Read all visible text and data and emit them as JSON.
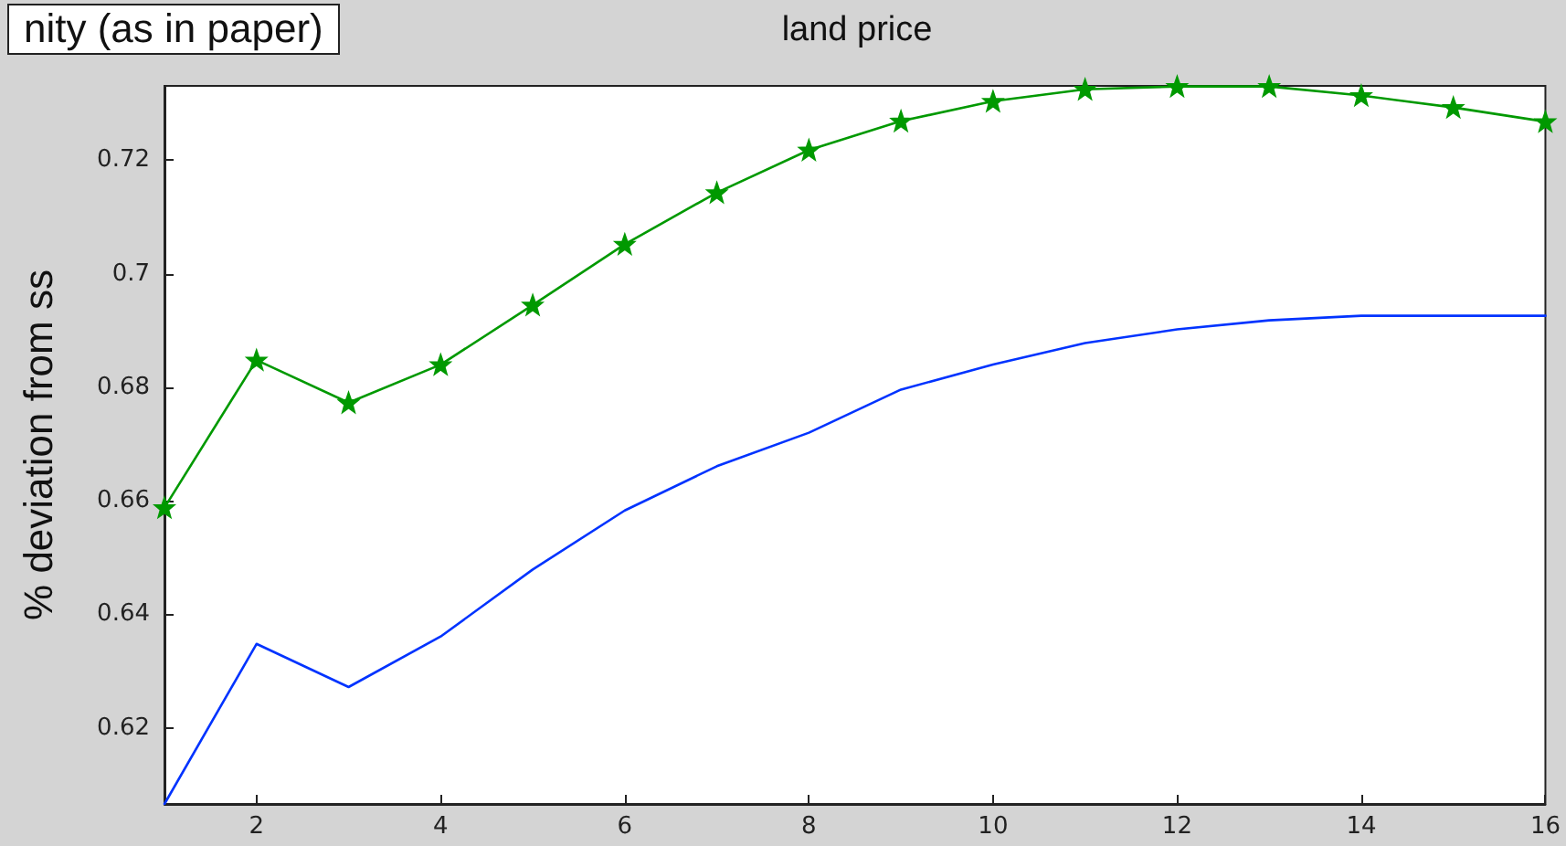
{
  "chart_data": {
    "type": "line",
    "title": "land price",
    "ylabel": "% deviation from ss",
    "annotations": [
      "nity (as in paper)"
    ],
    "x": [
      1,
      2,
      3,
      4,
      5,
      6,
      7,
      8,
      9,
      10,
      11,
      12,
      13,
      14,
      15,
      16
    ],
    "series": [
      {
        "color": "#0033ff",
        "marker": "none",
        "values": [
          0.6066,
          0.6348,
          0.6272,
          0.6361,
          0.6479,
          0.6583,
          0.6661,
          0.672,
          0.6796,
          0.684,
          0.6878,
          0.6902,
          0.6918,
          0.6926,
          0.6926,
          0.6926
        ]
      },
      {
        "color": "#009900",
        "marker": "star",
        "values": [
          0.6588,
          0.6848,
          0.6773,
          0.684,
          0.6945,
          0.7052,
          0.7143,
          0.7218,
          0.7269,
          0.7304,
          0.7325,
          0.733,
          0.733,
          0.7314,
          0.7293,
          0.7268
        ]
      }
    ],
    "xlim": [
      1,
      16
    ],
    "xticks": [
      2,
      4,
      6,
      8,
      10,
      12,
      14,
      16
    ],
    "ylim": [
      0.6066,
      0.7331
    ],
    "yticks": [
      0.62,
      0.64,
      0.66,
      0.68,
      0.7,
      0.72
    ],
    "grid": false,
    "line_style": "solid"
  }
}
